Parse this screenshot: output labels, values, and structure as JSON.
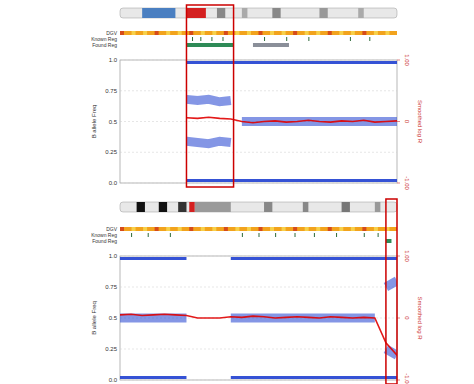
{
  "chart_data": [
    {
      "type": "line",
      "x": [
        0,
        4,
        8,
        12,
        16,
        20,
        24,
        28,
        32,
        36,
        40,
        44,
        48,
        52,
        56,
        60,
        64,
        68,
        72,
        76,
        80,
        84,
        88,
        92,
        96,
        100
      ],
      "xlim": [
        0,
        100
      ],
      "ylim": [
        0,
        1
      ],
      "y2lim": [
        -1,
        1
      ],
      "yticks": [
        {
          "value": 0,
          "label": "0.0"
        },
        0.25,
        {
          "value": 0.5,
          "label": "0.5"
        },
        0.75,
        {
          "value": 1,
          "label": "1.0"
        }
      ],
      "y2ticks": [
        {
          "value": 1,
          "label": "1.00"
        },
        0,
        {
          "value": -1,
          "label": "-1.00"
        }
      ],
      "y_label": "B allele Freq",
      "y2_label": "Smoothed log R",
      "tracks": [
        "DGV",
        "Known Reg",
        "Found Reg"
      ],
      "found_regions": [
        {
          "start": 24,
          "end": 41,
          "color": "#2e8b57"
        },
        {
          "start": 48,
          "end": 61,
          "color": "#8a8f99"
        }
      ],
      "highlight_x": [
        24,
        41
      ],
      "grid": true,
      "tick_labels": "y",
      "series": [
        {
          "color": "#1f3fd0",
          "line_style": "solid",
          "values": [
            null,
            null,
            null,
            null,
            null,
            null,
            0.98,
            0.98,
            0.98,
            0.98,
            0.98,
            0.98,
            0.98,
            0.98,
            0.98,
            0.98,
            0.98,
            0.98,
            0.98,
            0.98,
            0.98,
            0.98,
            0.98,
            0.98,
            0.98,
            0.98
          ]
        },
        {
          "color": "#1f3fd0",
          "line_style": "band",
          "values": [
            null,
            null,
            null,
            null,
            null,
            null,
            0.68,
            0.67,
            0.68,
            0.66,
            0.67,
            null,
            null,
            null,
            null,
            null,
            null,
            null,
            null,
            null,
            null,
            null,
            null,
            null,
            null,
            null
          ]
        },
        {
          "color": "#1f3fd0",
          "line_style": "band",
          "values": [
            null,
            null,
            null,
            null,
            null,
            null,
            null,
            null,
            null,
            null,
            null,
            0.5,
            0.5,
            0.5,
            0.5,
            0.5,
            0.5,
            0.5,
            0.5,
            0.5,
            0.5,
            0.5,
            0.5,
            0.5,
            0.5,
            0.5
          ]
        },
        {
          "color": "#1f3fd0",
          "line_style": "band",
          "values": [
            null,
            null,
            null,
            null,
            null,
            null,
            0.34,
            0.33,
            0.32,
            0.34,
            0.33,
            null,
            null,
            null,
            null,
            null,
            null,
            null,
            null,
            null,
            null,
            null,
            null,
            null,
            null,
            null
          ]
        },
        {
          "color": "#1f3fd0",
          "line_style": "solid",
          "values": [
            null,
            null,
            null,
            null,
            null,
            null,
            0.02,
            0.02,
            0.02,
            0.02,
            0.02,
            0.02,
            0.02,
            0.02,
            0.02,
            0.02,
            0.02,
            0.02,
            0.02,
            0.02,
            0.02,
            0.02,
            0.02,
            0.02,
            0.02,
            0.02
          ]
        },
        {
          "color": "#e00000",
          "line_style": "solid",
          "axis": "y2",
          "values": [
            null,
            null,
            null,
            null,
            null,
            null,
            0.06,
            0.05,
            0.07,
            0.05,
            0.04,
            0.0,
            -0.02,
            0.0,
            0.01,
            -0.01,
            0.0,
            0.02,
            0.0,
            -0.01,
            0.01,
            0.0,
            0.02,
            -0.01,
            0.0,
            0.01
          ]
        }
      ]
    },
    {
      "type": "line",
      "x": [
        0,
        4,
        8,
        12,
        16,
        20,
        24,
        28,
        32,
        36,
        40,
        44,
        48,
        52,
        56,
        60,
        64,
        68,
        72,
        76,
        80,
        84,
        88,
        92,
        96,
        100
      ],
      "xlim": [
        0,
        100
      ],
      "ylim": [
        0,
        1
      ],
      "y2lim": [
        -1,
        1
      ],
      "yticks": [
        {
          "value": 0,
          "label": "0.0"
        },
        0.25,
        {
          "value": 0.5,
          "label": "0.5"
        },
        0.75,
        {
          "value": 1,
          "label": "1.0"
        }
      ],
      "y2ticks": [
        {
          "value": 1,
          "label": "1.00"
        },
        0,
        {
          "value": -1,
          "label": "-1.00"
        }
      ],
      "y_label": "B allele Freq",
      "y2_label": "Smoothed log R",
      "tracks": [
        "DGV",
        "Known Reg",
        "Found Reg"
      ],
      "found_regions": [
        {
          "start": 96,
          "end": 98,
          "color": "#2e8b57"
        }
      ],
      "highlight_x": [
        96,
        100
      ],
      "grid": true,
      "tick_labels": "y",
      "series": [
        {
          "color": "#1f3fd0",
          "line_style": "solid",
          "values": [
            0.98,
            0.98,
            0.98,
            0.98,
            0.98,
            0.98,
            0.98,
            null,
            null,
            null,
            0.98,
            0.98,
            0.98,
            0.98,
            0.98,
            0.98,
            0.98,
            0.98,
            0.98,
            0.98,
            0.98,
            0.98,
            0.98,
            0.98,
            0.98,
            0.98
          ]
        },
        {
          "color": "#1f3fd0",
          "line_style": "band",
          "values": [
            null,
            null,
            null,
            null,
            null,
            null,
            null,
            null,
            null,
            null,
            null,
            null,
            null,
            null,
            null,
            null,
            null,
            null,
            null,
            null,
            null,
            null,
            null,
            null,
            0.75,
            0.8
          ]
        },
        {
          "color": "#1f3fd0",
          "line_style": "band",
          "values": [
            0.5,
            0.5,
            0.5,
            0.5,
            0.5,
            0.5,
            0.5,
            null,
            null,
            null,
            0.5,
            0.5,
            0.5,
            0.5,
            0.5,
            0.5,
            0.5,
            0.5,
            0.5,
            0.5,
            0.5,
            0.5,
            0.5,
            0.5,
            null,
            null
          ]
        },
        {
          "color": "#1f3fd0",
          "line_style": "band",
          "values": [
            null,
            null,
            null,
            null,
            null,
            null,
            null,
            null,
            null,
            null,
            null,
            null,
            null,
            null,
            null,
            null,
            null,
            null,
            null,
            null,
            null,
            null,
            null,
            null,
            0.25,
            0.2
          ]
        },
        {
          "color": "#1f3fd0",
          "line_style": "solid",
          "values": [
            0.02,
            0.02,
            0.02,
            0.02,
            0.02,
            0.02,
            0.02,
            null,
            null,
            null,
            0.02,
            0.02,
            0.02,
            0.02,
            0.02,
            0.02,
            0.02,
            0.02,
            0.02,
            0.02,
            0.02,
            0.02,
            0.02,
            0.02,
            0.02,
            0.02
          ]
        },
        {
          "color": "#e00000",
          "line_style": "solid",
          "axis": "y2",
          "values": [
            0.05,
            0.06,
            0.04,
            0.05,
            0.06,
            0.05,
            0.04,
            0.0,
            0.0,
            0.0,
            0.02,
            0.01,
            0.03,
            0.02,
            0.0,
            0.01,
            0.02,
            0.01,
            0.0,
            0.02,
            0.01,
            0.0,
            0.01,
            0.0,
            -0.4,
            -0.6
          ]
        }
      ]
    }
  ]
}
